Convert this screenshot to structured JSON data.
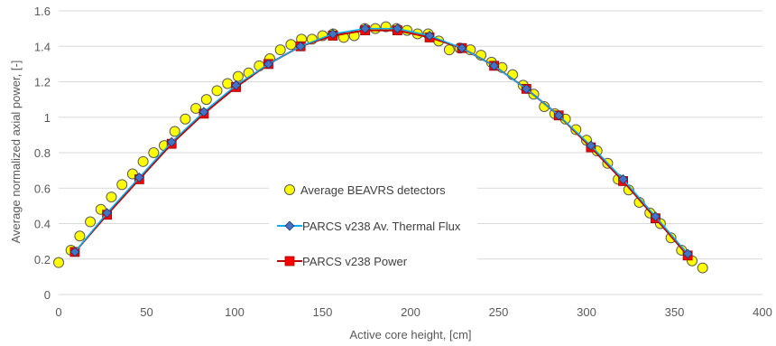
{
  "chart_data": {
    "type": "scatter",
    "xlabel": "Active core height, [cm]",
    "ylabel": "Average normalized axial power, [-]",
    "xlim": [
      0,
      400
    ],
    "ylim": [
      0,
      1.6
    ],
    "xticks": [
      "0",
      "50",
      "100",
      "150",
      "200",
      "250",
      "300",
      "350",
      "400"
    ],
    "yticks": [
      "0",
      "0.2",
      "0.4",
      "0.6",
      "0.8",
      "1",
      "1.2",
      "1.4",
      "1.6"
    ],
    "grid": "horizontal",
    "legend_position": "center",
    "series": [
      {
        "name": "Average BEAVRS detectors",
        "style": "circle-markers",
        "color": "#ffff00",
        "edge": "#595959",
        "x": [
          0,
          7,
          12,
          18,
          24,
          30,
          36,
          42,
          48,
          54,
          60,
          66,
          72,
          78,
          84,
          90,
          96,
          102,
          108,
          114,
          120,
          126,
          132,
          138,
          144,
          150,
          156,
          162,
          168,
          174,
          180,
          186,
          192,
          198,
          204,
          210,
          216,
          222,
          228,
          234,
          240,
          246,
          252,
          258,
          264,
          270,
          276,
          282,
          288,
          294,
          300,
          306,
          312,
          318,
          324,
          330,
          336,
          342,
          348,
          354,
          360,
          366
        ],
        "y": [
          0.18,
          0.25,
          0.33,
          0.41,
          0.48,
          0.55,
          0.62,
          0.68,
          0.75,
          0.8,
          0.84,
          0.92,
          0.99,
          1.05,
          1.1,
          1.15,
          1.19,
          1.23,
          1.25,
          1.29,
          1.33,
          1.38,
          1.41,
          1.44,
          1.44,
          1.46,
          1.47,
          1.45,
          1.46,
          1.5,
          1.5,
          1.51,
          1.5,
          1.49,
          1.47,
          1.47,
          1.43,
          1.38,
          1.39,
          1.38,
          1.35,
          1.31,
          1.28,
          1.24,
          1.18,
          1.13,
          1.06,
          1.02,
          0.99,
          0.93,
          0.87,
          0.81,
          0.74,
          0.65,
          0.59,
          0.52,
          0.46,
          0.4,
          0.32,
          0.25,
          0.19,
          0.15
        ]
      },
      {
        "name": "PARCS v238 Av. Thermal Flux",
        "style": "line-diamond",
        "color": "#00b0f0",
        "marker": "#4472c4",
        "x": [
          9.2,
          27.5,
          45.8,
          64.2,
          82.5,
          100.8,
          119.2,
          137.5,
          155.8,
          174.2,
          192.5,
          210.8,
          229.2,
          247.5,
          265.8,
          284.2,
          302.5,
          320.8,
          339.2,
          357.5
        ],
        "y": [
          0.24,
          0.46,
          0.66,
          0.86,
          1.03,
          1.18,
          1.3,
          1.4,
          1.47,
          1.5,
          1.5,
          1.46,
          1.39,
          1.29,
          1.16,
          1.01,
          0.84,
          0.65,
          0.44,
          0.23
        ]
      },
      {
        "name": "PARCS v238 Power",
        "style": "line-square",
        "color": "#c00000",
        "marker": "#ff0000",
        "x": [
          9.2,
          27.5,
          45.8,
          64.2,
          82.5,
          100.8,
          119.2,
          137.5,
          155.8,
          174.2,
          192.5,
          210.8,
          229.2,
          247.5,
          265.8,
          284.2,
          302.5,
          320.8,
          339.2,
          357.5
        ],
        "y": [
          0.24,
          0.45,
          0.65,
          0.85,
          1.02,
          1.17,
          1.3,
          1.4,
          1.46,
          1.49,
          1.49,
          1.45,
          1.39,
          1.29,
          1.16,
          1.01,
          0.83,
          0.64,
          0.43,
          0.22
        ]
      }
    ]
  }
}
